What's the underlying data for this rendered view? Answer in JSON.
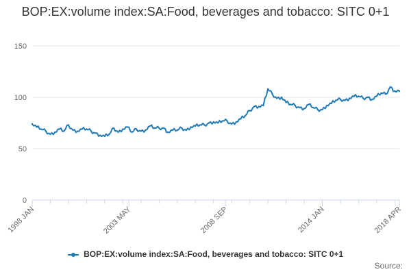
{
  "chart_data": {
    "type": "line",
    "title": "BOP:EX:volume index:SA:Food, beverages and tobacco: SITC 0+1",
    "xlabel": "",
    "ylabel": "",
    "ylim": [
      0,
      150
    ],
    "yticks": [
      "0",
      "50",
      "100",
      "150"
    ],
    "xtick_labels": [
      "1998 JAN",
      "2003 MAY",
      "2008 SEP",
      "2014 JAN",
      "2018 APR"
    ],
    "grid": true,
    "legend_position": "bottom",
    "series": [
      {
        "name": "BOP:EX:volume index:SA:Food, beverages and tobacco: SITC 0+1",
        "color": "#1f7ab8",
        "x": [
          "1998-01",
          "1998-04",
          "1998-07",
          "1998-10",
          "1999-01",
          "1999-04",
          "1999-07",
          "1999-10",
          "2000-01",
          "2000-04",
          "2000-07",
          "2000-10",
          "2001-01",
          "2001-04",
          "2001-07",
          "2001-10",
          "2002-01",
          "2002-04",
          "2002-07",
          "2002-10",
          "2003-01",
          "2003-04",
          "2003-07",
          "2003-10",
          "2004-01",
          "2004-04",
          "2004-07",
          "2004-10",
          "2005-01",
          "2005-04",
          "2005-07",
          "2005-10",
          "2006-01",
          "2006-04",
          "2006-07",
          "2006-10",
          "2007-01",
          "2007-04",
          "2007-07",
          "2007-10",
          "2008-01",
          "2008-04",
          "2008-07",
          "2008-10",
          "2009-01",
          "2009-04",
          "2009-07",
          "2009-10",
          "2010-01",
          "2010-04",
          "2010-07",
          "2010-10",
          "2011-01",
          "2011-04",
          "2011-07",
          "2011-10",
          "2012-01",
          "2012-04",
          "2012-07",
          "2012-10",
          "2013-01",
          "2013-04",
          "2013-07",
          "2013-10",
          "2014-01",
          "2014-04",
          "2014-07",
          "2014-10",
          "2015-01",
          "2015-04",
          "2015-07",
          "2015-10",
          "2016-01",
          "2016-04",
          "2016-07",
          "2016-10",
          "2017-01",
          "2017-04",
          "2017-07",
          "2017-10",
          "2018-01",
          "2018-04"
        ],
        "values": [
          74,
          71,
          69,
          67,
          64,
          66,
          69,
          67,
          73,
          68,
          67,
          69,
          69,
          67,
          65,
          63,
          62,
          64,
          70,
          66,
          69,
          71,
          66,
          69,
          67,
          68,
          72,
          70,
          70,
          70,
          66,
          68,
          68,
          70,
          68,
          71,
          72,
          73,
          73,
          75,
          76,
          75,
          77,
          77,
          74,
          76,
          79,
          82,
          87,
          91,
          91,
          92,
          108,
          103,
          99,
          100,
          95,
          93,
          92,
          90,
          89,
          93,
          90,
          88,
          88,
          92,
          94,
          97,
          98,
          97,
          99,
          101,
          101,
          99,
          100,
          98,
          101,
          104,
          103,
          110,
          106,
          106
        ]
      }
    ]
  },
  "credits": "Source:"
}
